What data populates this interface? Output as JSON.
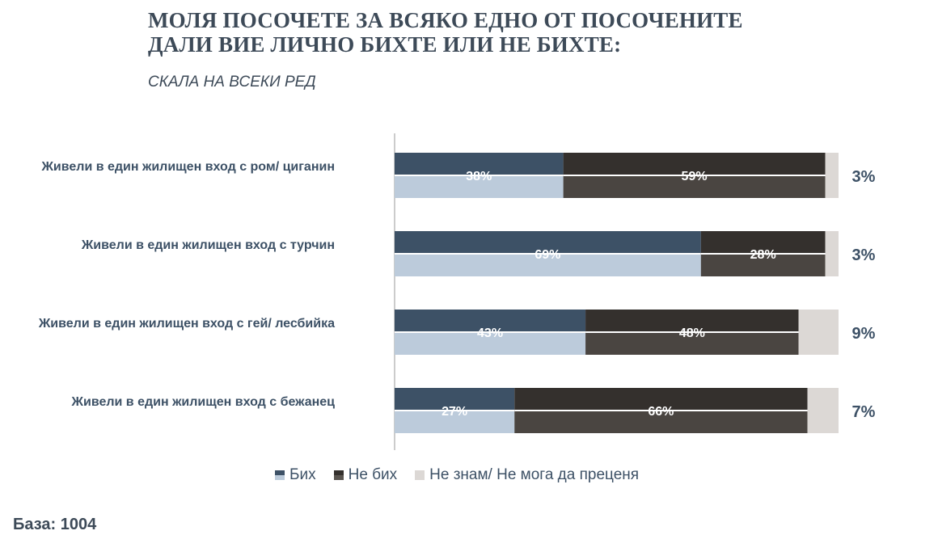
{
  "title_line1": "МОЛЯ ПОСОЧЕТЕ ЗА ВСЯКО ЕДНО ОТ ПОСОЧЕНИТЕ",
  "title_line2": "ДАЛИ ВИЕ ЛИЧНО БИХТЕ ИЛИ НЕ БИХТЕ:",
  "subtitle": "СКАЛА НА ВСЕКИ РЕД",
  "base": "База: 1004",
  "colors": {
    "bih_top": "#3d5166",
    "bih_bottom": "#bccbdb",
    "nebih_top": "#34302d",
    "nebih_bottom": "#4a4541",
    "unknown": "#dcd8d5"
  },
  "chart_data": {
    "type": "bar",
    "orientation": "horizontal-stacked",
    "title": "МОЛЯ ПОСОЧЕТЕ ЗА ВСЯКО ЕДНО ОТ ПОСОЧЕНИТЕ ДАЛИ ВИЕ ЛИЧНО БИХТЕ ИЛИ НЕ БИХТЕ:",
    "categories": [
      "Живели в един жилищен вход с ром/ циганин",
      "Живели в един жилищен вход с турчин",
      "Живели в един жилищен вход с гей/ лесбийка",
      "Живели в един жилищен вход с бежанец"
    ],
    "series": [
      {
        "name": "Бих",
        "values": [
          38,
          69,
          43,
          27
        ]
      },
      {
        "name": "Не бих",
        "values": [
          59,
          28,
          48,
          66
        ]
      },
      {
        "name": "Не знам/ Не мога да преценя",
        "values": [
          3,
          3,
          9,
          7
        ]
      }
    ],
    "xlim": [
      0,
      100
    ],
    "legend": "bottom",
    "grid": false
  }
}
